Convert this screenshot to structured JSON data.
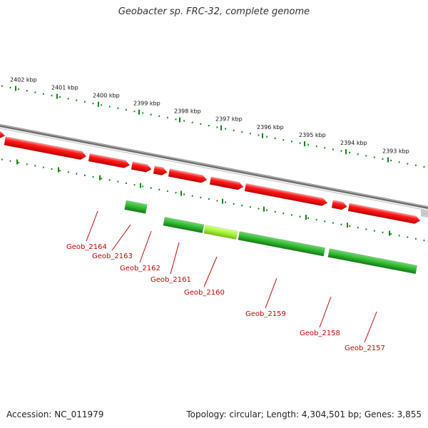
{
  "title": "Geobacter sp. FRC-32, complete genome",
  "footer": {
    "accession": "Accession: NC_011979",
    "topology": "Topology: circular; Length: 4,304,501 bp; Genes: 3,855"
  },
  "colors": {
    "forward_gene": "#ee0000",
    "reverse_gene": "#22aa22",
    "highlight_gene": "#99ee33",
    "backbone": "#888888",
    "ticks": "#118811",
    "labels": "#cc0000"
  },
  "scale_ticks": [
    "2402 kbp",
    "2401 kbp",
    "2400 kbp",
    "2399 kbp",
    "2398 kbp",
    "2397 kbp",
    "2396 kbp",
    "2395 kbp",
    "2394 kbp",
    "2393 kbp"
  ],
  "genes": [
    {
      "name": "Geob_2164",
      "strand": "forward",
      "highlight": false
    },
    {
      "name": "Geob_2163",
      "strand": "reverse",
      "highlight": false
    },
    {
      "name": "Geob_2162",
      "strand": "forward",
      "highlight": false
    },
    {
      "name": "Geob_2161",
      "strand": "reverse",
      "highlight": false
    },
    {
      "name": "Geob_2160",
      "strand": "reverse",
      "highlight": true
    },
    {
      "name": "Geob_2159",
      "strand": "reverse",
      "highlight": false
    },
    {
      "name": "Geob_2158",
      "strand": "reverse",
      "highlight": false
    },
    {
      "name": "Geob_2157",
      "strand": "reverse",
      "highlight": false
    }
  ]
}
